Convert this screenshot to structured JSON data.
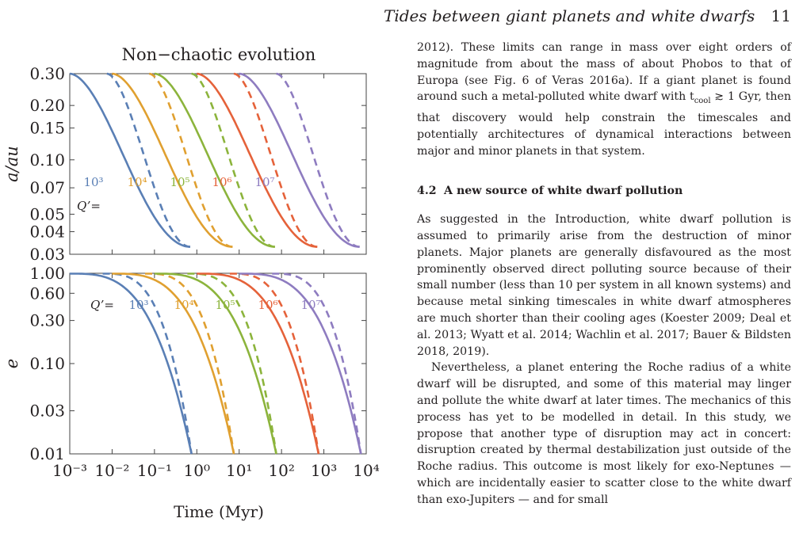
{
  "header": {
    "running_title": "Tides between giant planets and white dwarfs",
    "page_number": "11"
  },
  "chart_data": [
    {
      "type": "line",
      "title": "Non−chaotic evolution",
      "xlabel": "",
      "ylabel": "a/au",
      "yscale": "log",
      "xscale": "log",
      "xlim": [
        0.001,
        10000
      ],
      "ylim": [
        0.03,
        0.3
      ],
      "yticks": [
        0.03,
        0.04,
        0.05,
        0.07,
        0.1,
        0.15,
        0.2,
        0.3
      ],
      "ytick_labels": [
        "0.03",
        "0.04",
        "0.05",
        "0.07",
        "0.10",
        "0.15",
        "0.20",
        "0.30"
      ],
      "q_label": "Q’=",
      "series": [
        {
          "name": "10³",
          "color": "#5a7fb5",
          "t_end": 0.7,
          "solid": [
            [
              0.001,
              0.3
            ],
            [
              0.7,
              0.033
            ]
          ],
          "dashed": [
            [
              0.0075,
              0.3
            ],
            [
              0.7,
              0.033
            ]
          ]
        },
        {
          "name": "10⁴",
          "color": "#e0a030",
          "t_end": 7,
          "solid": [
            [
              0.01,
              0.3
            ],
            [
              7,
              0.033
            ]
          ],
          "dashed": [
            [
              0.075,
              0.3
            ],
            [
              7,
              0.033
            ]
          ]
        },
        {
          "name": "10⁵",
          "color": "#8cb43c",
          "t_end": 70,
          "solid": [
            [
              0.1,
              0.3
            ],
            [
              70,
              0.033
            ]
          ],
          "dashed": [
            [
              0.75,
              0.3
            ],
            [
              70,
              0.033
            ]
          ]
        },
        {
          "name": "10⁶",
          "color": "#e5623a",
          "t_end": 700,
          "solid": [
            [
              1,
              0.3
            ],
            [
              700,
              0.033
            ]
          ],
          "dashed": [
            [
              7.5,
              0.3
            ],
            [
              700,
              0.033
            ]
          ]
        },
        {
          "name": "10⁷",
          "color": "#8e7cc0",
          "t_end": 7000,
          "solid": [
            [
              10,
              0.3
            ],
            [
              7000,
              0.033
            ]
          ],
          "dashed": [
            [
              75,
              0.3
            ],
            [
              7000,
              0.033
            ]
          ]
        }
      ]
    },
    {
      "type": "line",
      "title": "",
      "xlabel": "Time (Myr)",
      "ylabel": "e",
      "yscale": "log",
      "xscale": "log",
      "xlim": [
        0.001,
        10000
      ],
      "ylim": [
        0.01,
        1.0
      ],
      "xticks": [
        0.001,
        0.01,
        0.1,
        1,
        10,
        100,
        1000,
        10000
      ],
      "yticks": [
        0.01,
        0.03,
        0.1,
        0.3,
        0.6,
        1.0
      ],
      "ytick_labels": [
        "0.01",
        "0.03",
        "0.10",
        "0.30",
        "0.60",
        "1.00"
      ],
      "q_label": "Q’=",
      "series": [
        {
          "name": "10³",
          "color": "#5a7fb5",
          "t_end": 0.75,
          "solid": [
            [
              0.001,
              0.99
            ],
            [
              0.75,
              0.01
            ]
          ],
          "dashed": [
            [
              0.006,
              0.99
            ],
            [
              0.75,
              0.01
            ]
          ]
        },
        {
          "name": "10⁴",
          "color": "#e0a030",
          "t_end": 7.5,
          "solid": [
            [
              0.01,
              0.99
            ],
            [
              7.5,
              0.01
            ]
          ],
          "dashed": [
            [
              0.06,
              0.99
            ],
            [
              7.5,
              0.01
            ]
          ]
        },
        {
          "name": "10⁵",
          "color": "#8cb43c",
          "t_end": 75,
          "solid": [
            [
              0.1,
              0.99
            ],
            [
              75,
              0.01
            ]
          ],
          "dashed": [
            [
              0.6,
              0.99
            ],
            [
              75,
              0.01
            ]
          ]
        },
        {
          "name": "10⁶",
          "color": "#e5623a",
          "t_end": 750,
          "solid": [
            [
              1,
              0.99
            ],
            [
              750,
              0.01
            ]
          ],
          "dashed": [
            [
              6,
              0.99
            ],
            [
              750,
              0.01
            ]
          ]
        },
        {
          "name": "10⁷",
          "color": "#8e7cc0",
          "t_end": 7500,
          "solid": [
            [
              10,
              0.99
            ],
            [
              7500,
              0.01
            ]
          ],
          "dashed": [
            [
              60,
              0.99
            ],
            [
              7500,
              0.01
            ]
          ]
        }
      ]
    }
  ],
  "body": {
    "p0": "2012). These limits can range in mass over eight orders of magnitude from about the mass of about Phobos to that of Europa (see Fig. 6 of Veras 2016a). If a giant planet is found around such a metal-polluted white dwarf with t",
    "p0_sub": "cool",
    "p0_rel": " ≳ 1",
    "p0_end": "Gyr, then that discovery would help constrain the timescales and potentially architectures of dynamical interactions between major and minor planets in that system.",
    "section_number": "4.2",
    "section_title": "A new source of white dwarf pollution",
    "p1": "As suggested in the Introduction, white dwarf pollution is assumed to primarily arise from the destruction of minor planets. Major planets are generally disfavoured as the most prominently observed direct polluting source because of their small number (less than 10 per system in all known systems) and because metal sinking timescales in white dwarf atmospheres are much shorter than their cooling ages (Koester 2009; Deal et al. 2013; Wyatt et al. 2014; Wachlin et al. 2017; Bauer & Bildsten 2018, 2019).",
    "p2": "Nevertheless, a planet entering the Roche radius of a white dwarf will be disrupted, and some of this material may linger and pollute the white dwarf at later times. The mechanics of this process has yet to be modelled in detail. In this study, we propose that another type of disruption may act in concert: disruption created by thermal destabilization just outside of the Roche radius. This outcome is most likely for exo-Neptunes — which are incidentally easier to scatter close to the white dwarf than exo-Jupiters — and for small"
  }
}
